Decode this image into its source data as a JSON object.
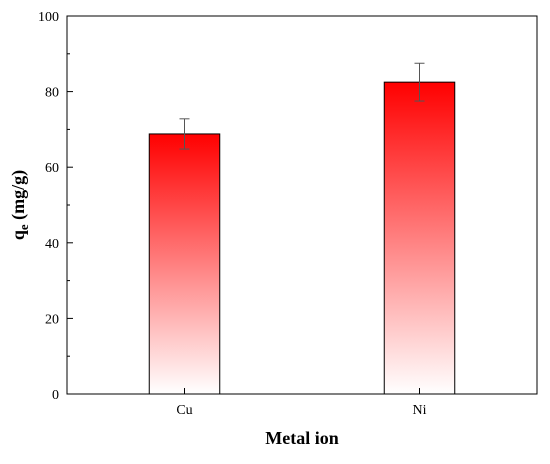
{
  "chart_data": {
    "type": "bar",
    "categories": [
      "Cu",
      "Ni"
    ],
    "values": [
      68.8,
      82.5
    ],
    "errors": [
      4.0,
      5.0
    ],
    "title": "",
    "xlabel": "Metal ion",
    "ylabel": {
      "main": "q",
      "sub": "e",
      "unit": " (mg/g)"
    },
    "ylim": [
      0,
      100
    ],
    "yticks": [
      0,
      20,
      40,
      60,
      80,
      100
    ],
    "bar_gradient": {
      "top": "#ff0000",
      "bottom": "#ffffff"
    },
    "bar_edge_color": "#000000",
    "grid": false,
    "legend": "none"
  }
}
